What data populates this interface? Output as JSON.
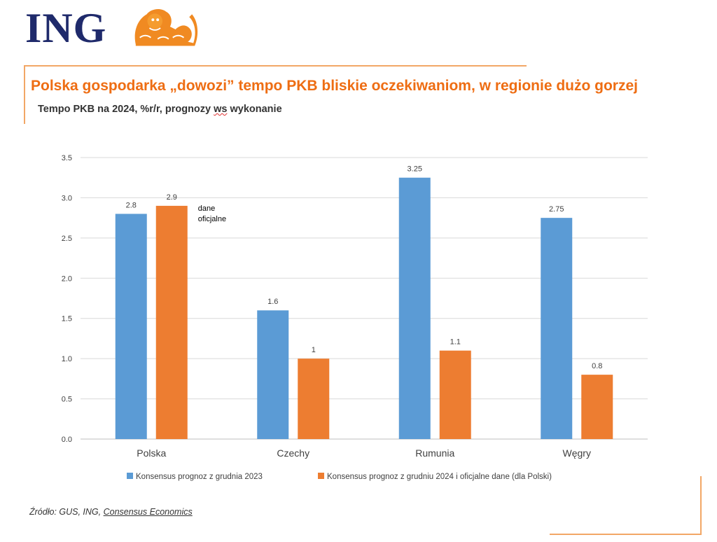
{
  "logo": {
    "text": "ING"
  },
  "header": {
    "title": "Polska gospodarka „dowozi” tempo PKB bliskie oczekiwaniom, w regionie dużo gorzej",
    "subtitle_pre": "Tempo PKB na 2024, %r/r, prognozy ",
    "subtitle_ws": "ws",
    "subtitle_post": " wykonanie"
  },
  "colors": {
    "brand_orange": "#ee6d13",
    "brand_blue": "#1f2a6b",
    "series1": "#5b9bd5",
    "series2": "#ed7d31"
  },
  "chart_data": {
    "type": "bar",
    "categories": [
      "Polska",
      "Czechy",
      "Rumunia",
      "Węgry"
    ],
    "series": [
      {
        "name": "Konsensus prognoz z grudnia 2023",
        "values": [
          2.8,
          1.6,
          3.25,
          2.75
        ],
        "labels": [
          "2.8",
          "1.6",
          "3.25",
          "2.75"
        ]
      },
      {
        "name": "Konsensus prognoz z grudniu 2024 i oficjalne dane (dla Polski)",
        "values": [
          2.9,
          1.0,
          1.1,
          0.8
        ],
        "labels": [
          "2.9",
          "1",
          "1.1",
          "0.8"
        ]
      }
    ],
    "ylim": [
      0,
      3.5
    ],
    "yticks": [
      "0.0",
      "0.5",
      "1.0",
      "1.5",
      "2.0",
      "2.5",
      "3.0",
      "3.5"
    ],
    "grid": true,
    "legend": "bottom",
    "annotation": {
      "line1": "dane",
      "line2": "oficjalne"
    }
  },
  "footer": {
    "source_pre": "Źródło: GUS, ING, ",
    "source_link": "Consensus Economics"
  }
}
